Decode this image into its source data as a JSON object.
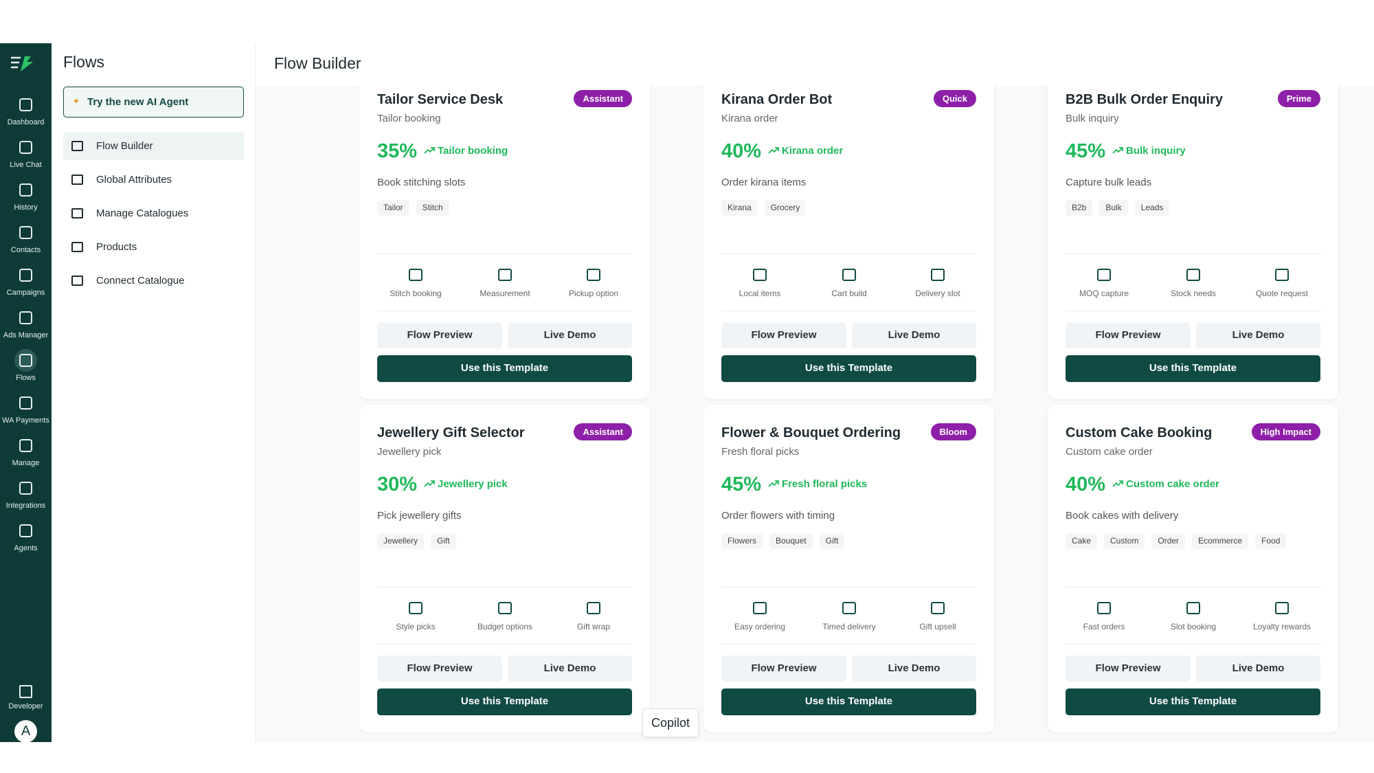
{
  "sidebar": {
    "items": [
      "Dashboard",
      "Live Chat",
      "History",
      "Contacts",
      "Campaigns",
      "Ads Manager",
      "Flows",
      "WA Payments",
      "Manage",
      "Integrations",
      "Agents"
    ],
    "developer": "Developer",
    "avatar": "A"
  },
  "panel": {
    "title": "Flows",
    "ai_button": "Try the new AI Agent",
    "menu": [
      "Flow Builder",
      "Global Attributes",
      "Manage Catalogues",
      "Products",
      "Connect Catalogue"
    ]
  },
  "header": {
    "title": "Flow Builder"
  },
  "cards": [
    {
      "title": "Tailor Service Desk",
      "badge": "Assistant",
      "subtitle": "Tailor booking",
      "rate": "35%",
      "trend": "Tailor booking",
      "description": "Book stitching slots",
      "tags": [
        "Tailor",
        "Stitch"
      ],
      "features": [
        "Stitch booking",
        "Measurement",
        "Pickup option"
      ],
      "preview": "Flow Preview",
      "demo": "Live Demo",
      "use": "Use this Template"
    },
    {
      "title": "Kirana Order Bot",
      "badge": "Quick",
      "subtitle": "Kirana order",
      "rate": "40%",
      "trend": "Kirana order",
      "description": "Order kirana items",
      "tags": [
        "Kirana",
        "Grocery"
      ],
      "features": [
        "Local items",
        "Cart build",
        "Delivery slot"
      ],
      "preview": "Flow Preview",
      "demo": "Live Demo",
      "use": "Use this Template"
    },
    {
      "title": "B2B Bulk Order Enquiry",
      "badge": "Prime",
      "subtitle": "Bulk inquiry",
      "rate": "45%",
      "trend": "Bulk inquiry",
      "description": "Capture bulk leads",
      "tags": [
        "B2b",
        "Bulk",
        "Leads"
      ],
      "features": [
        "MOQ capture",
        "Stock needs",
        "Quote request"
      ],
      "preview": "Flow Preview",
      "demo": "Live Demo",
      "use": "Use this Template"
    },
    {
      "title": "Jewellery Gift Selector",
      "badge": "Assistant",
      "subtitle": "Jewellery pick",
      "rate": "30%",
      "trend": "Jewellery pick",
      "description": "Pick jewellery gifts",
      "tags": [
        "Jewellery",
        "Gift"
      ],
      "features": [
        "Style picks",
        "Budget options",
        "Gift wrap"
      ],
      "preview": "Flow Preview",
      "demo": "Live Demo",
      "use": "Use this Template"
    },
    {
      "title": "Flower & Bouquet Ordering",
      "badge": "Bloom",
      "subtitle": "Fresh floral picks",
      "rate": "45%",
      "trend": "Fresh floral picks",
      "description": "Order flowers with timing",
      "tags": [
        "Flowers",
        "Bouquet",
        "Gift"
      ],
      "features": [
        "Easy ordering",
        "Timed delivery",
        "Gift upsell"
      ],
      "preview": "Flow Preview",
      "demo": "Live Demo",
      "use": "Use this Template"
    },
    {
      "title": "Custom Cake Booking",
      "badge": "High Impact",
      "subtitle": "Custom cake order",
      "rate": "40%",
      "trend": "Custom cake order",
      "description": "Book cakes with delivery",
      "tags": [
        "Cake",
        "Custom",
        "Order",
        "Ecommerce",
        "Food"
      ],
      "features": [
        "Fast orders",
        "Slot booking",
        "Loyalty rewards"
      ],
      "preview": "Flow Preview",
      "demo": "Live Demo",
      "use": "Use this Template"
    }
  ],
  "copilot": "Copilot"
}
